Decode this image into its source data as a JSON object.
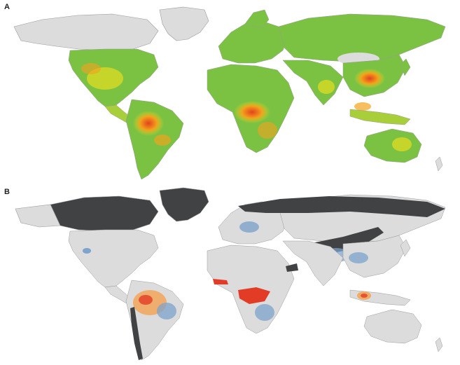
{
  "panels": [
    {
      "id": "A",
      "label": "A"
    },
    {
      "id": "B",
      "label": "B"
    }
  ],
  "colors": {
    "background": "#ffffff",
    "land_none": "#dcdcdc",
    "coast_stroke": "#9a9a9a",
    "suitability_low": "#7cc242",
    "suitability_mid": "#d7d924",
    "suitability_high": "#f4a21c",
    "suitability_max": "#e2421e",
    "excluded_dark": "#404244",
    "overlap_blue": "#7ea3cc",
    "overlap_orange": "#f2a65a",
    "overlap_red": "#e33c26"
  }
}
